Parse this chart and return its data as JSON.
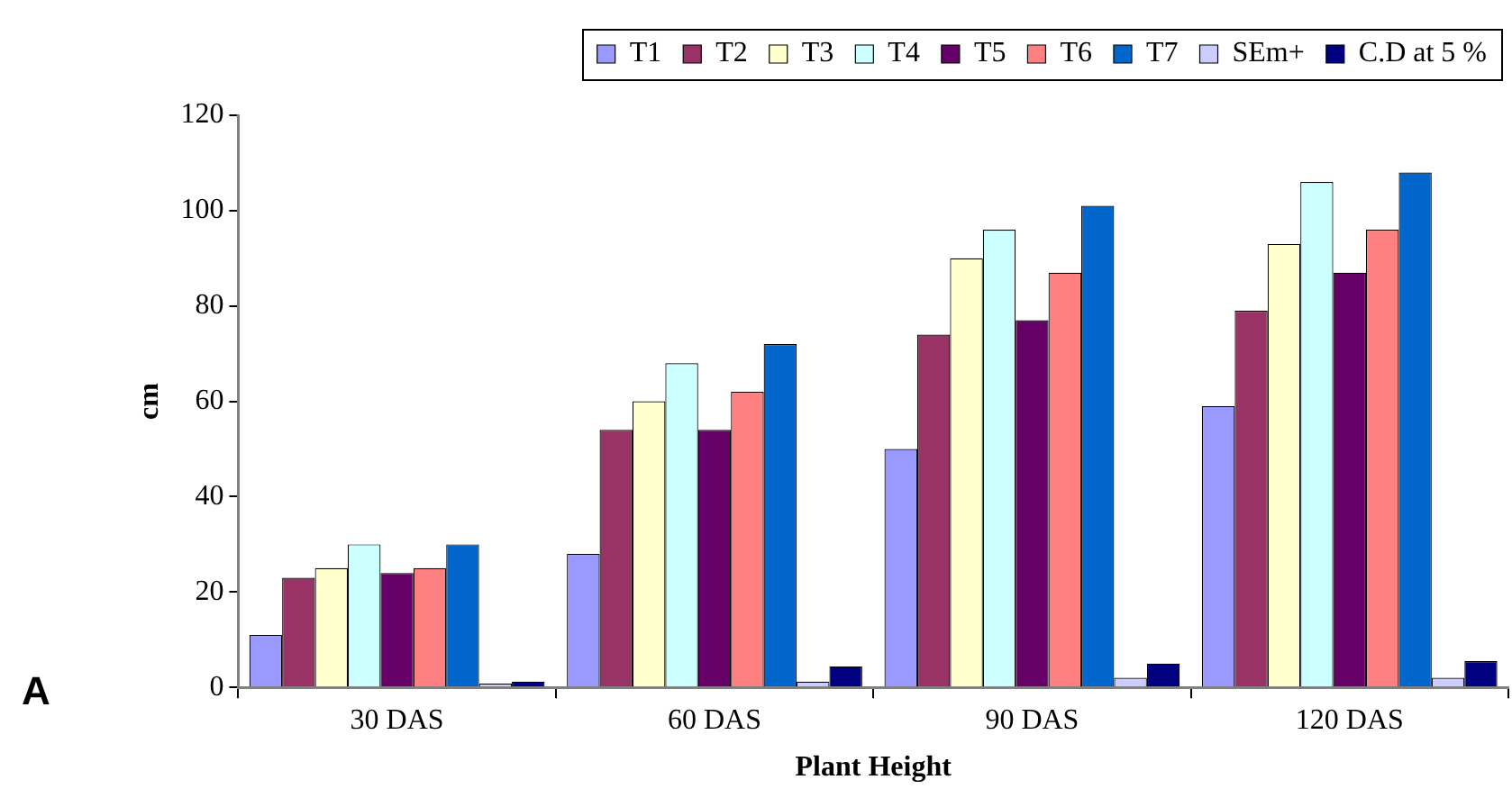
{
  "chart_data": {
    "type": "bar",
    "xlabel": "Plant Height",
    "ylabel": "cm",
    "categories": [
      "30 DAS",
      "60 DAS",
      "90 DAS",
      "120 DAS"
    ],
    "series": [
      {
        "name": "T1",
        "color": "#9999ff",
        "values": [
          11,
          28,
          50,
          59
        ]
      },
      {
        "name": "T2",
        "color": "#993366",
        "values": [
          23,
          54,
          74,
          79
        ]
      },
      {
        "name": "T3",
        "color": "#ffffcc",
        "values": [
          25,
          60,
          90,
          93
        ]
      },
      {
        "name": "T4",
        "color": "#ccffff",
        "values": [
          30,
          68,
          96,
          106
        ]
      },
      {
        "name": "T5",
        "color": "#660066",
        "values": [
          24,
          54,
          77,
          87
        ]
      },
      {
        "name": "T6",
        "color": "#ff8080",
        "values": [
          25,
          62,
          87,
          96
        ]
      },
      {
        "name": "T7",
        "color": "#0066cc",
        "values": [
          30,
          72,
          101,
          108
        ]
      },
      {
        "name": "SEm+",
        "color": "#ccccff",
        "values": [
          0.8,
          1.2,
          2,
          2
        ]
      },
      {
        "name": "C.D at 5 %",
        "color": "#000080",
        "values": [
          1.2,
          4.4,
          5,
          5.5
        ]
      }
    ],
    "ylim": [
      0,
      120
    ],
    "yticks": [
      0,
      20,
      40,
      60,
      80,
      100,
      120
    ],
    "grid": false,
    "legend": "top",
    "annotations": [
      "A"
    ]
  }
}
